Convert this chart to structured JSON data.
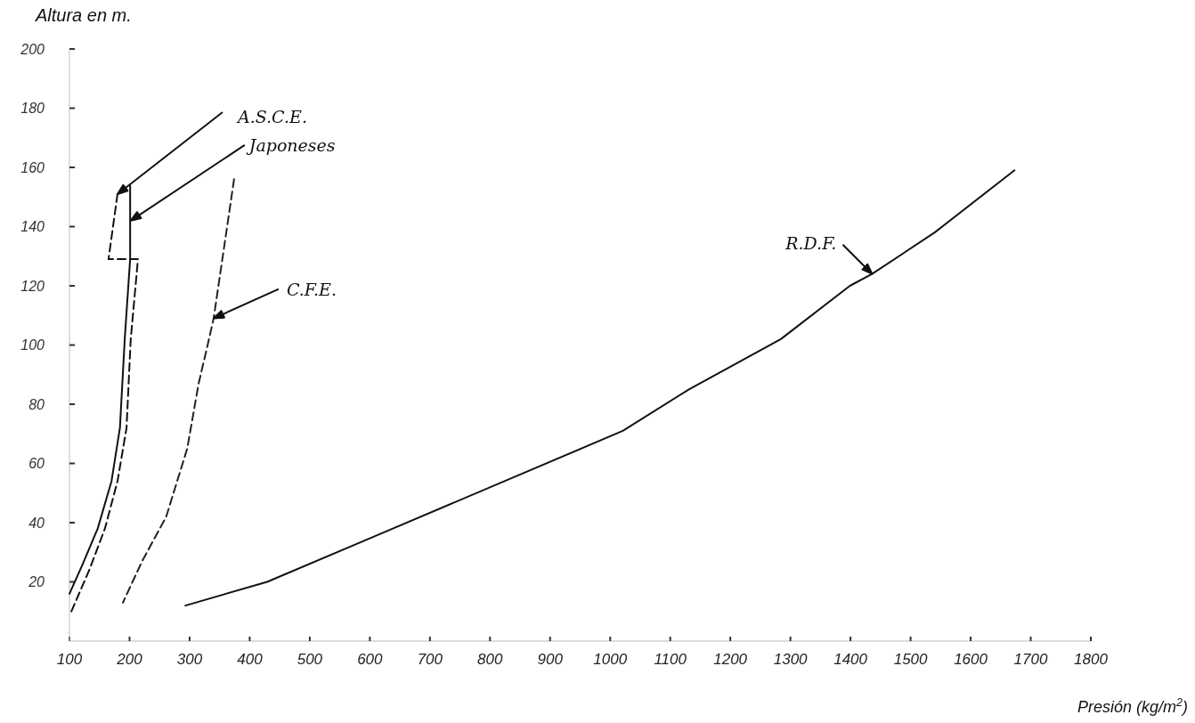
{
  "chart_data": {
    "type": "line",
    "xlabel": "Presión (kg/m$^{2}$)",
    "ylabel": "Altura en m.",
    "xlim": [
      100,
      1800
    ],
    "xticks": [
      100,
      200,
      300,
      400,
      500,
      600,
      700,
      800,
      900,
      1000,
      1100,
      1200,
      1300,
      1400,
      1500,
      1600,
      1700,
      1800
    ],
    "ylim": [
      0,
      200
    ],
    "yticks": [
      20,
      40,
      60,
      80,
      100,
      120,
      140,
      160,
      180,
      200
    ],
    "grid": false,
    "series": [
      {
        "color": "#111111",
        "line_style": "dashed",
        "x": [
          180,
          165,
          214,
          202,
          195,
          180,
          159,
          133,
          101
        ],
        "values": [
          151,
          129,
          129,
          102,
          72,
          54,
          38,
          24,
          9
        ]
      },
      {
        "color": "#111111",
        "line_style": "solid",
        "x": [
          201,
          201,
          192,
          184,
          170,
          147,
          122,
          100
        ],
        "values": [
          154,
          129,
          102,
          72,
          54,
          38,
          26,
          16
        ]
      },
      {
        "color": "#222222",
        "line_style": "dashed",
        "x": [
          374,
          340,
          330,
          315,
          296,
          261,
          221,
          189
        ],
        "values": [
          156,
          109,
          100,
          87,
          65,
          42,
          27,
          13
        ]
      },
      {
        "color": "#111111",
        "line_style": "solid",
        "x": [
          293,
          429,
          592,
          1021,
          1131,
          1284,
          1399,
          1436,
          1540,
          1673
        ],
        "values": [
          12,
          20,
          34,
          71,
          85,
          102,
          120,
          124,
          138,
          159
        ]
      }
    ],
    "annotations": [
      {
        "text": "A.S.C.E.",
        "x": 180,
        "y": 151
      },
      {
        "text": "Japoneses",
        "x": 202,
        "y": 142
      },
      {
        "text": "C.F.E.",
        "x": 340,
        "y": 109
      },
      {
        "text": "R.D.F.",
        "x": 1436,
        "y": 124
      }
    ]
  }
}
